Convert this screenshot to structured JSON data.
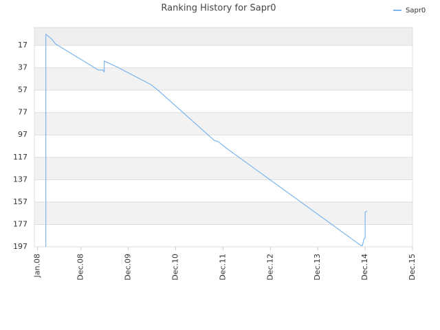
{
  "chart_data": {
    "type": "line",
    "title": "Ranking History for Sapr0",
    "series": [
      {
        "name": "Sapr0",
        "color": "#7cb5ec",
        "x": [
          2.1,
          2.1,
          3.5,
          4.4,
          4.7,
          15.4,
          16.6,
          16.9,
          16.9,
          20,
          28.7,
          30.5,
          44.8,
          45.8,
          47.9,
          82,
          82.3,
          82.7,
          83,
          83,
          83.5
        ],
        "values": [
          197,
          7,
          11,
          15,
          16,
          39,
          39,
          41,
          31,
          36,
          52,
          57,
          102,
          103,
          109,
          196,
          196,
          190,
          189,
          166,
          165
        ]
      }
    ],
    "xlim": [
      -0.8,
      95
    ],
    "xticks": [
      {
        "value": 0,
        "label": "Jan.08"
      },
      {
        "value": 11,
        "label": "Dec.08"
      },
      {
        "value": 23,
        "label": "Dec.09"
      },
      {
        "value": 35,
        "label": "Dec.10"
      },
      {
        "value": 47,
        "label": "Dec.11"
      },
      {
        "value": 59,
        "label": "Dec.12"
      },
      {
        "value": 71,
        "label": "Dec.13"
      },
      {
        "value": 83,
        "label": "Dec.14"
      },
      {
        "value": 95,
        "label": "Dec.15"
      }
    ],
    "ylim": [
      197,
      1
    ],
    "yticks": [
      17,
      37,
      57,
      77,
      97,
      117,
      137,
      157,
      177,
      197
    ],
    "grid": true,
    "legend": "top-right"
  }
}
